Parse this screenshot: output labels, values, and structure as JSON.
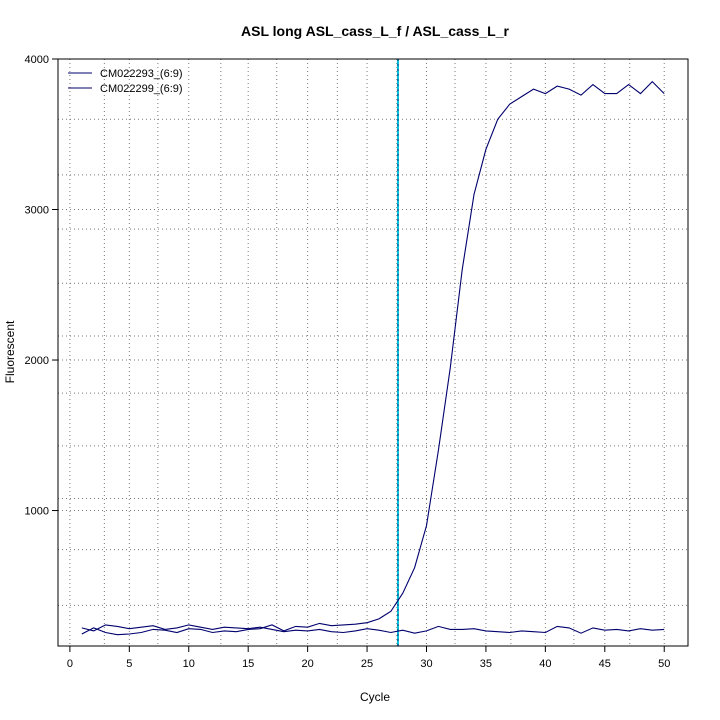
{
  "chart_data": {
    "type": "line",
    "title": "ASL long ASL_cass_L_f / ASL_cass_L_r",
    "xlabel": "Cycle",
    "ylabel": "Fluorescent",
    "xlim": [
      -1.0,
      52.0
    ],
    "ylim": [
      100,
      4000
    ],
    "x_ticks": [
      0,
      5,
      10,
      15,
      20,
      25,
      30,
      35,
      40,
      45,
      50
    ],
    "y_ticks": [
      1000,
      2000,
      3000,
      4000
    ],
    "minor_x_grid": [
      2.9,
      7.4,
      12.7,
      17.4,
      22.5,
      27.5,
      32.4,
      37.1,
      42.4,
      47.1
    ],
    "minor_y_grid": [
      370,
      740,
      1080,
      1430,
      1780,
      2160,
      2510,
      2870,
      3230,
      3600
    ],
    "grid": "dotted",
    "legend_position": "top-left",
    "threshold_x": 27.6,
    "threshold_color": "#00bcd4",
    "series": [
      {
        "name": "CM022293_(6:9)",
        "color": "#00006e",
        "x": [
          1,
          2,
          3,
          4,
          5,
          6,
          7,
          8,
          9,
          10,
          11,
          12,
          13,
          14,
          15,
          16,
          17,
          18,
          19,
          20,
          21,
          22,
          23,
          24,
          25,
          26,
          27,
          28,
          29,
          30,
          31,
          32,
          33,
          34,
          35,
          36,
          37,
          38,
          39,
          40,
          41,
          42,
          43,
          44,
          45,
          46,
          47,
          48,
          49,
          50
        ],
        "values": [
          180,
          220,
          190,
          175,
          180,
          190,
          210,
          205,
          190,
          215,
          210,
          190,
          200,
          195,
          210,
          215,
          240,
          200,
          230,
          225,
          250,
          235,
          240,
          245,
          255,
          280,
          330,
          450,
          620,
          900,
          1400,
          1950,
          2600,
          3100,
          3400,
          3600,
          3700,
          3750,
          3800,
          3770,
          3820,
          3800,
          3760,
          3830,
          3770,
          3770,
          3830,
          3770,
          3850,
          3770
        ]
      },
      {
        "name": "CM022299_(6:9)",
        "color": "#00006e",
        "x": [
          1,
          2,
          3,
          4,
          5,
          6,
          7,
          8,
          9,
          10,
          11,
          12,
          13,
          14,
          15,
          16,
          17,
          18,
          19,
          20,
          21,
          22,
          23,
          24,
          25,
          26,
          27,
          28,
          29,
          30,
          31,
          32,
          33,
          34,
          35,
          36,
          37,
          38,
          39,
          40,
          41,
          42,
          43,
          44,
          45,
          46,
          47,
          48,
          49,
          50
        ],
        "values": [
          220,
          200,
          240,
          230,
          215,
          225,
          235,
          210,
          220,
          240,
          225,
          210,
          225,
          220,
          215,
          225,
          210,
          195,
          205,
          200,
          210,
          195,
          190,
          200,
          215,
          205,
          190,
          205,
          185,
          200,
          230,
          210,
          210,
          215,
          200,
          195,
          190,
          200,
          195,
          190,
          230,
          220,
          185,
          220,
          205,
          210,
          200,
          215,
          205,
          210
        ]
      }
    ]
  }
}
